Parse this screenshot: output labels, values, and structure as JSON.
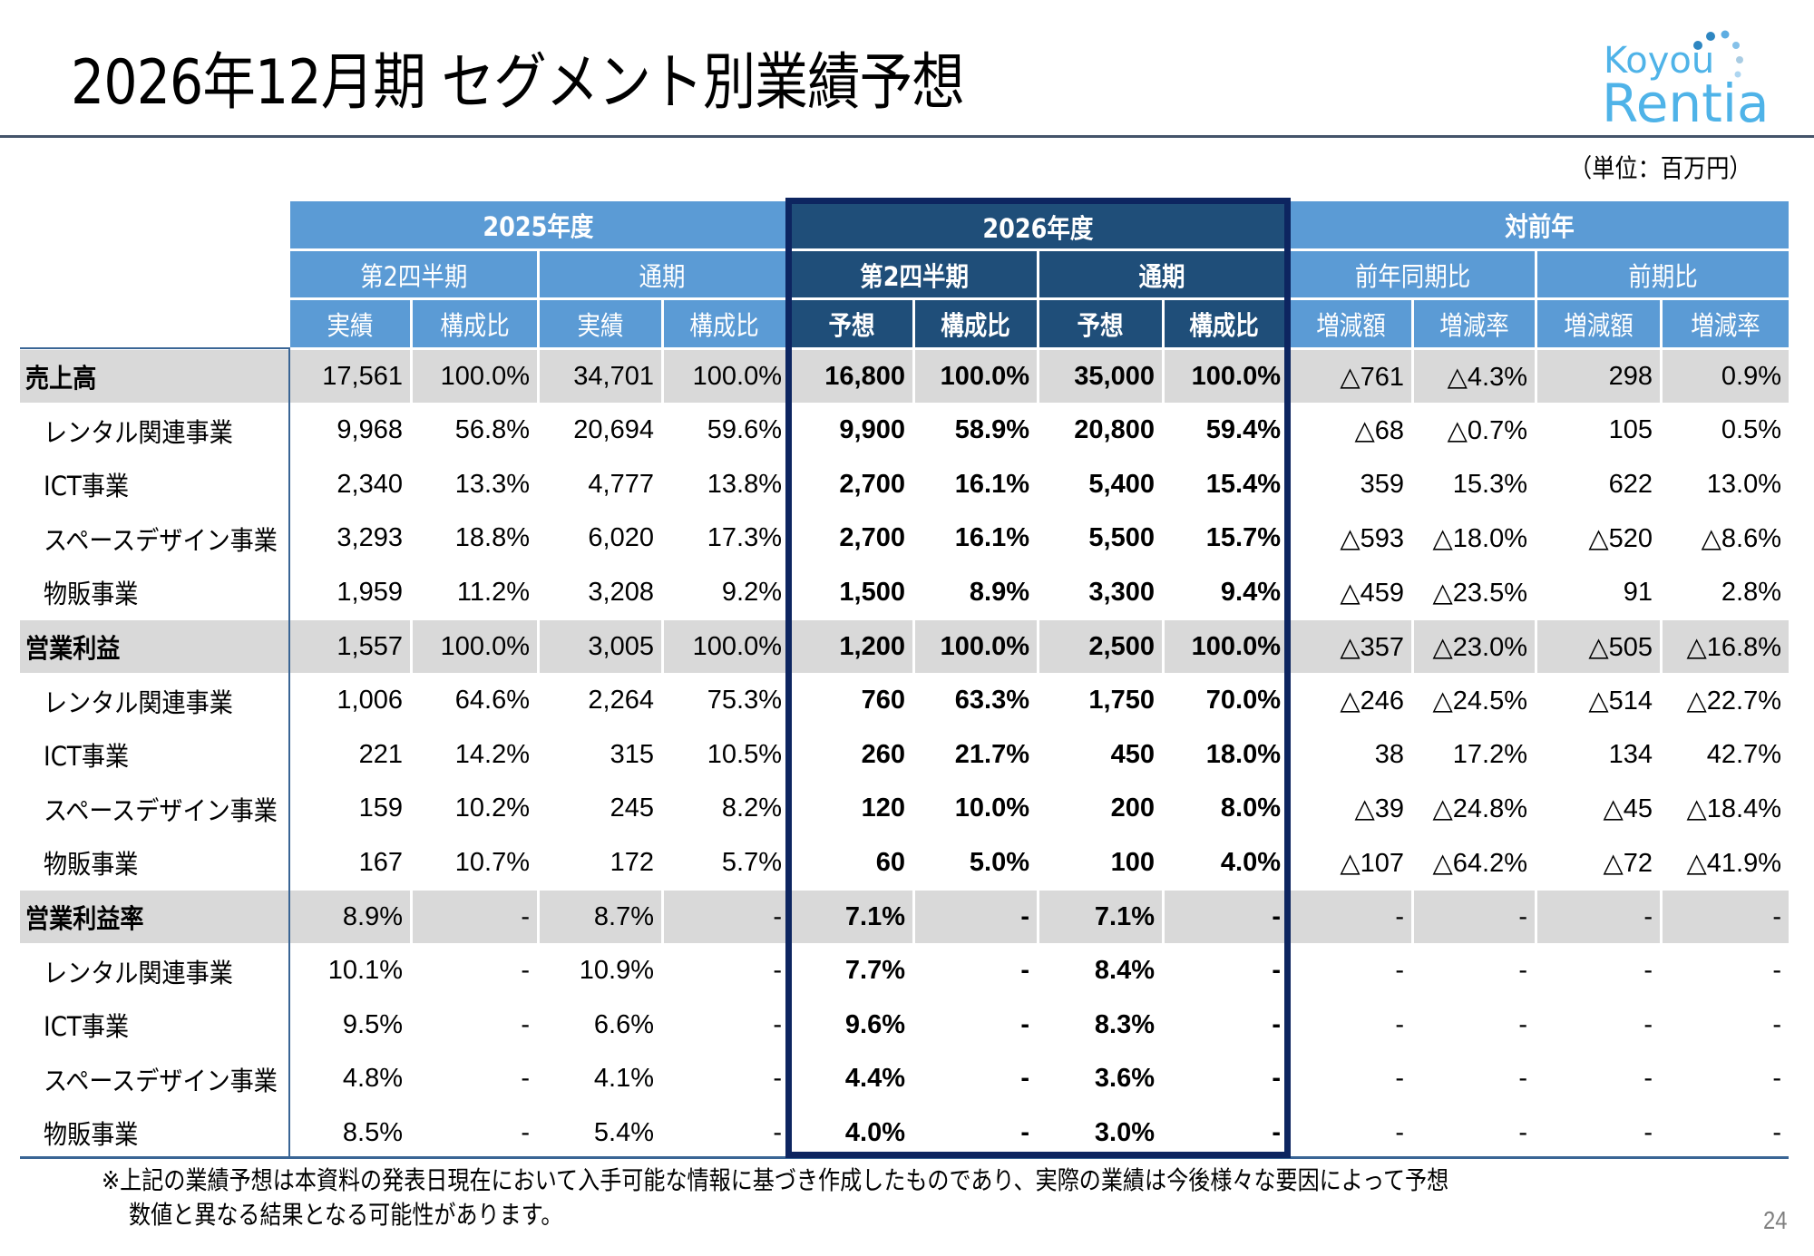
{
  "title": "2026年12月期 セグメント別業績予想",
  "logo": {
    "line1": "Koyou",
    "line2": "Rentia"
  },
  "unit_label": "（単位：百万円）",
  "colors": {
    "header_light": "#5b9bd5",
    "header_dark": "#1f4e79",
    "highlight_border": "#0d2560",
    "shade": "#d9d9d9",
    "rule": "#44546a"
  },
  "header": {
    "groups": [
      "2025年度",
      "2026年度",
      "対前年"
    ],
    "periods": [
      "第2四半期",
      "通期",
      "第2四半期",
      "通期",
      "前年同期比",
      "前期比"
    ],
    "columns": [
      "実績",
      "構成比",
      "実績",
      "構成比",
      "予想",
      "構成比",
      "予想",
      "構成比",
      "増減額",
      "増減率",
      "増減額",
      "増減率"
    ]
  },
  "rows": [
    {
      "label": "売上高",
      "type": "total",
      "values": [
        "17,561",
        "100.0%",
        "34,701",
        "100.0%",
        "16,800",
        "100.0%",
        "35,000",
        "100.0%",
        "△761",
        "△4.3%",
        "298",
        "0.9%"
      ]
    },
    {
      "label": "レンタル関連事業",
      "type": "sub",
      "values": [
        "9,968",
        "56.8%",
        "20,694",
        "59.6%",
        "9,900",
        "58.9%",
        "20,800",
        "59.4%",
        "△68",
        "△0.7%",
        "105",
        "0.5%"
      ]
    },
    {
      "label": "ICT事業",
      "type": "sub",
      "values": [
        "2,340",
        "13.3%",
        "4,777",
        "13.8%",
        "2,700",
        "16.1%",
        "5,400",
        "15.4%",
        "359",
        "15.3%",
        "622",
        "13.0%"
      ]
    },
    {
      "label": "スペースデザイン事業",
      "type": "sub",
      "values": [
        "3,293",
        "18.8%",
        "6,020",
        "17.3%",
        "2,700",
        "16.1%",
        "5,500",
        "15.7%",
        "△593",
        "△18.0%",
        "△520",
        "△8.6%"
      ]
    },
    {
      "label": "物販事業",
      "type": "sub",
      "values": [
        "1,959",
        "11.2%",
        "3,208",
        "9.2%",
        "1,500",
        "8.9%",
        "3,300",
        "9.4%",
        "△459",
        "△23.5%",
        "91",
        "2.8%"
      ]
    },
    {
      "label": "営業利益",
      "type": "total",
      "values": [
        "1,557",
        "100.0%",
        "3,005",
        "100.0%",
        "1,200",
        "100.0%",
        "2,500",
        "100.0%",
        "△357",
        "△23.0%",
        "△505",
        "△16.8%"
      ]
    },
    {
      "label": "レンタル関連事業",
      "type": "sub",
      "values": [
        "1,006",
        "64.6%",
        "2,264",
        "75.3%",
        "760",
        "63.3%",
        "1,750",
        "70.0%",
        "△246",
        "△24.5%",
        "△514",
        "△22.7%"
      ]
    },
    {
      "label": "ICT事業",
      "type": "sub",
      "values": [
        "221",
        "14.2%",
        "315",
        "10.5%",
        "260",
        "21.7%",
        "450",
        "18.0%",
        "38",
        "17.2%",
        "134",
        "42.7%"
      ]
    },
    {
      "label": "スペースデザイン事業",
      "type": "sub",
      "values": [
        "159",
        "10.2%",
        "245",
        "8.2%",
        "120",
        "10.0%",
        "200",
        "8.0%",
        "△39",
        "△24.8%",
        "△45",
        "△18.4%"
      ]
    },
    {
      "label": "物販事業",
      "type": "sub",
      "values": [
        "167",
        "10.7%",
        "172",
        "5.7%",
        "60",
        "5.0%",
        "100",
        "4.0%",
        "△107",
        "△64.2%",
        "△72",
        "△41.9%"
      ]
    },
    {
      "label": "営業利益率",
      "type": "total",
      "values": [
        "8.9%",
        "-",
        "8.7%",
        "-",
        "7.1%",
        "-",
        "7.1%",
        "-",
        "-",
        "-",
        "-",
        "-"
      ]
    },
    {
      "label": "レンタル関連事業",
      "type": "sub",
      "values": [
        "10.1%",
        "-",
        "10.9%",
        "-",
        "7.7%",
        "-",
        "8.4%",
        "-",
        "-",
        "-",
        "-",
        "-"
      ]
    },
    {
      "label": "ICT事業",
      "type": "sub",
      "values": [
        "9.5%",
        "-",
        "6.6%",
        "-",
        "9.6%",
        "-",
        "8.3%",
        "-",
        "-",
        "-",
        "-",
        "-"
      ]
    },
    {
      "label": "スペースデザイン事業",
      "type": "sub",
      "values": [
        "4.8%",
        "-",
        "4.1%",
        "-",
        "4.4%",
        "-",
        "3.6%",
        "-",
        "-",
        "-",
        "-",
        "-"
      ]
    },
    {
      "label": "物販事業",
      "type": "sub",
      "values": [
        "8.5%",
        "-",
        "5.4%",
        "-",
        "4.0%",
        "-",
        "3.0%",
        "-",
        "-",
        "-",
        "-",
        "-"
      ]
    }
  ],
  "footnote": {
    "line1": "※上記の業績予想は本資料の発表日現在において入手可能な情報に基づき作成したものであり、実際の業績は今後様々な要因によって予想",
    "line2": "数値と異なる結果となる可能性があります。"
  },
  "page_number": "24"
}
